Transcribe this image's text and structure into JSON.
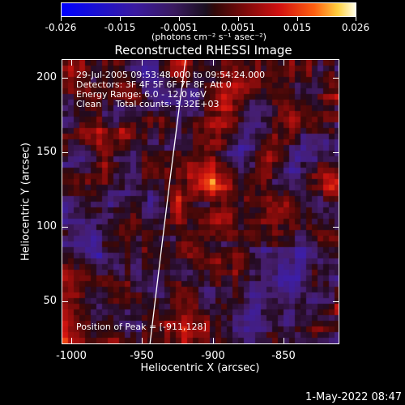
{
  "colorbar": {
    "ticks": [
      "-0.026",
      "-0.015",
      "-0.0051",
      "0.0051",
      "0.015",
      "0.026"
    ],
    "units": "(photons cm⁻² s⁻¹ asec⁻²)"
  },
  "plot": {
    "title": "Reconstructed RHESSI Image",
    "xlabel": "Heliocentric X (arcsec)",
    "ylabel": "Heliocentric Y (arcsec)",
    "xticks": [
      "-1000",
      "-950",
      "-900",
      "-850"
    ],
    "yticks": [
      "200",
      "150",
      "100",
      "50"
    ],
    "xlim": [
      -1012,
      -815
    ],
    "ylim": [
      23,
      212
    ]
  },
  "annotations": {
    "time": "29-Jul-2005 09:53:48.000 to 09:54:24.000",
    "detectors": "Detectors: 3F 4F 5F 6F 7F 8F, Att 0",
    "energy": "Energy Range: 6.0 - 12.0 keV",
    "method": "Clean     Total counts: 3.32E+03",
    "peak": "Position of Peak = [-911,128]"
  },
  "peak": {
    "x": -911,
    "y": 128
  },
  "footer": "1-May-2022 08:47"
}
